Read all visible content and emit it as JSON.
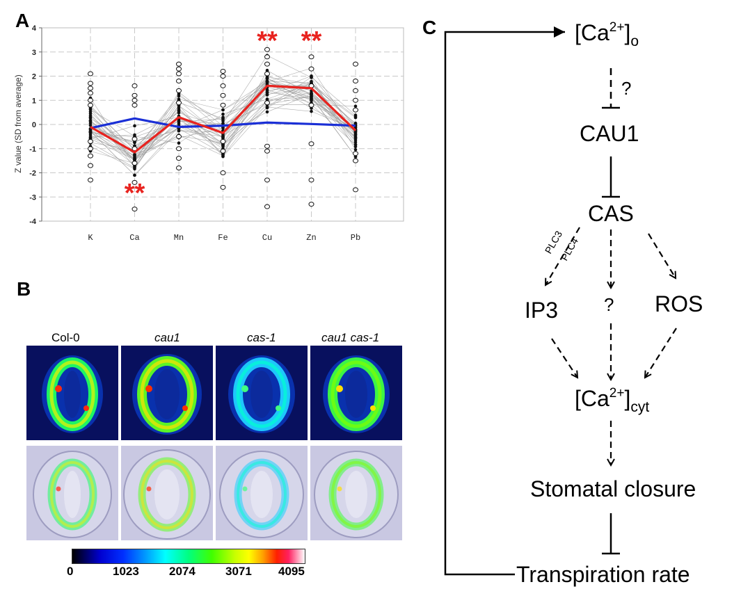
{
  "panels": {
    "a": "A",
    "b": "B",
    "c": "C"
  },
  "chart_data": {
    "type": "line",
    "ylabel": "Z value (SD from average)",
    "xlabel": "",
    "categories": [
      "K",
      "Ca",
      "Mn",
      "Fe",
      "Cu",
      "Zn",
      "Pb"
    ],
    "ylim": [
      -4,
      4
    ],
    "yticks": [
      4,
      3,
      2,
      1,
      0,
      -1,
      -2,
      -3,
      -4
    ],
    "grid": true,
    "series": [
      {
        "name": "",
        "color": "#e8231f",
        "values": [
          -0.1,
          -1.15,
          0.3,
          -0.35,
          1.6,
          1.5,
          -0.25
        ]
      },
      {
        "name": "",
        "color": "#1a2fd6",
        "values": [
          -0.15,
          0.25,
          -0.1,
          -0.05,
          0.08,
          0.02,
          -0.05
        ]
      }
    ],
    "significance": [
      {
        "category": "Ca",
        "label": "**",
        "position": "below"
      },
      {
        "category": "Cu",
        "label": "**",
        "position": "above"
      },
      {
        "category": "Zn",
        "label": "**",
        "position": "above"
      }
    ],
    "outliers_open": {
      "K": [
        2.1,
        1.7,
        1.5,
        1.3,
        1.0,
        0.8,
        -0.7,
        -1.0,
        -1.3,
        -1.7,
        -2.3
      ],
      "Ca": [
        1.6,
        1.2,
        1.0,
        0.8,
        -0.6,
        -1.0,
        -1.6,
        -2.4,
        -3.5
      ],
      "Mn": [
        2.5,
        2.3,
        2.1,
        1.8,
        1.4,
        0.9,
        -0.5,
        -1.0,
        -1.4,
        -1.8
      ],
      "Fe": [
        2.2,
        2.0,
        1.6,
        1.2,
        0.8,
        -0.7,
        -1.1,
        -2.0,
        -2.6
      ],
      "Cu": [
        3.1,
        2.8,
        2.5,
        2.1,
        0.9,
        -0.9,
        -1.1,
        -2.3,
        -3.4
      ],
      "Zn": [
        2.8,
        2.3,
        1.6,
        0.8,
        -0.8,
        -2.3,
        -3.3
      ],
      "Pb": [
        2.5,
        1.8,
        1.4,
        1.0,
        0.6,
        -1.2,
        -1.5,
        -2.7
      ]
    }
  },
  "panel_b": {
    "labels": [
      "Col-0",
      "cau1",
      "cas-1",
      "cau1 cas-1"
    ],
    "colorbar_ticks": [
      "0",
      "1023",
      "2074",
      "3071",
      "4095"
    ]
  },
  "panel_c": {
    "ca_o": {
      "main": "[Ca",
      "sup": "2+",
      "close": "]",
      "sub": "o"
    },
    "q1": "?",
    "cau1": "CAU1",
    "cas": "CAS",
    "plc3": "PLC3",
    "plc4": "PLC4",
    "ip3": "IP3",
    "q2": "?",
    "ros": "ROS",
    "ca_cyt": {
      "main": "[Ca",
      "sup": "2+",
      "close": "]",
      "sub": "cyt"
    },
    "closure": "Stomatal closure",
    "transpiration": "Transpiration rate"
  }
}
